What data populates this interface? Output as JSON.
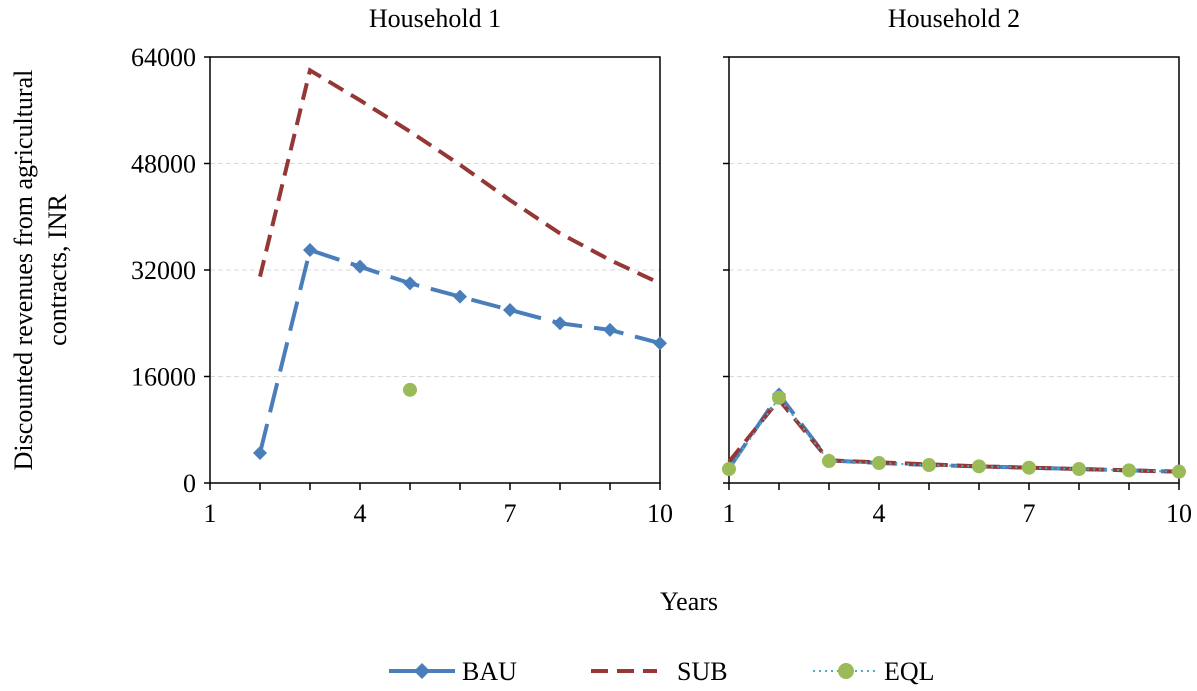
{
  "chart_data": {
    "type": "line",
    "ylabel": "Discounted revenues from agricultural contracts, INR",
    "xlabel": "Years",
    "ylim": [
      0,
      64000
    ],
    "yticks": [
      0,
      16000,
      32000,
      48000,
      64000
    ],
    "xlim": [
      1,
      10
    ],
    "xticks": [
      1,
      4,
      7,
      10
    ],
    "grid": "horizontal dashed",
    "legend_position": "bottom",
    "legend": [
      {
        "name": "BAU",
        "color": "#4a7ebb",
        "style": "long-dash",
        "marker": "diamond"
      },
      {
        "name": "SUB",
        "color": "#953735",
        "style": "dash",
        "marker": "none"
      },
      {
        "name": "EQL",
        "color": "#9bbb59",
        "style": "dotted",
        "line_color": "#4bacc6",
        "marker": "circle"
      }
    ],
    "panels": [
      {
        "title": "Household 1",
        "series": [
          {
            "name": "BAU",
            "x": [
              2,
              3,
              4,
              5,
              6,
              7,
              8,
              9,
              10
            ],
            "values": [
              4500,
              35000,
              32500,
              30000,
              28000,
              26000,
              24000,
              23000,
              21000
            ]
          },
          {
            "name": "SUB",
            "x": [
              2,
              3,
              4,
              5,
              6,
              7,
              8,
              9,
              10
            ],
            "values": [
              31000,
              62000,
              57500,
              52800,
              47800,
              42500,
              37500,
              33500,
              30000
            ]
          },
          {
            "name": "EQL",
            "x": [
              5
            ],
            "values": [
              14000
            ]
          }
        ]
      },
      {
        "title": "Household 2",
        "series": [
          {
            "name": "BAU",
            "x": [
              1,
              2,
              3,
              4,
              5,
              6,
              7,
              8,
              9,
              10
            ],
            "values": [
              2200,
              13300,
              3400,
              3000,
              2700,
              2500,
              2300,
              2100,
              1900,
              1700
            ]
          },
          {
            "name": "SUB",
            "x": [
              1,
              2,
              3,
              4,
              5,
              6,
              7,
              8,
              9,
              10
            ],
            "values": [
              3200,
              12500,
              3400,
              3100,
              2800,
              2500,
              2300,
              2100,
              1900,
              1700
            ]
          },
          {
            "name": "EQL",
            "x": [
              1,
              2,
              3,
              4,
              5,
              6,
              7,
              8,
              9,
              10
            ],
            "values": [
              2100,
              12800,
              3300,
              3000,
              2700,
              2500,
              2300,
              2100,
              1900,
              1700
            ]
          }
        ]
      }
    ]
  }
}
